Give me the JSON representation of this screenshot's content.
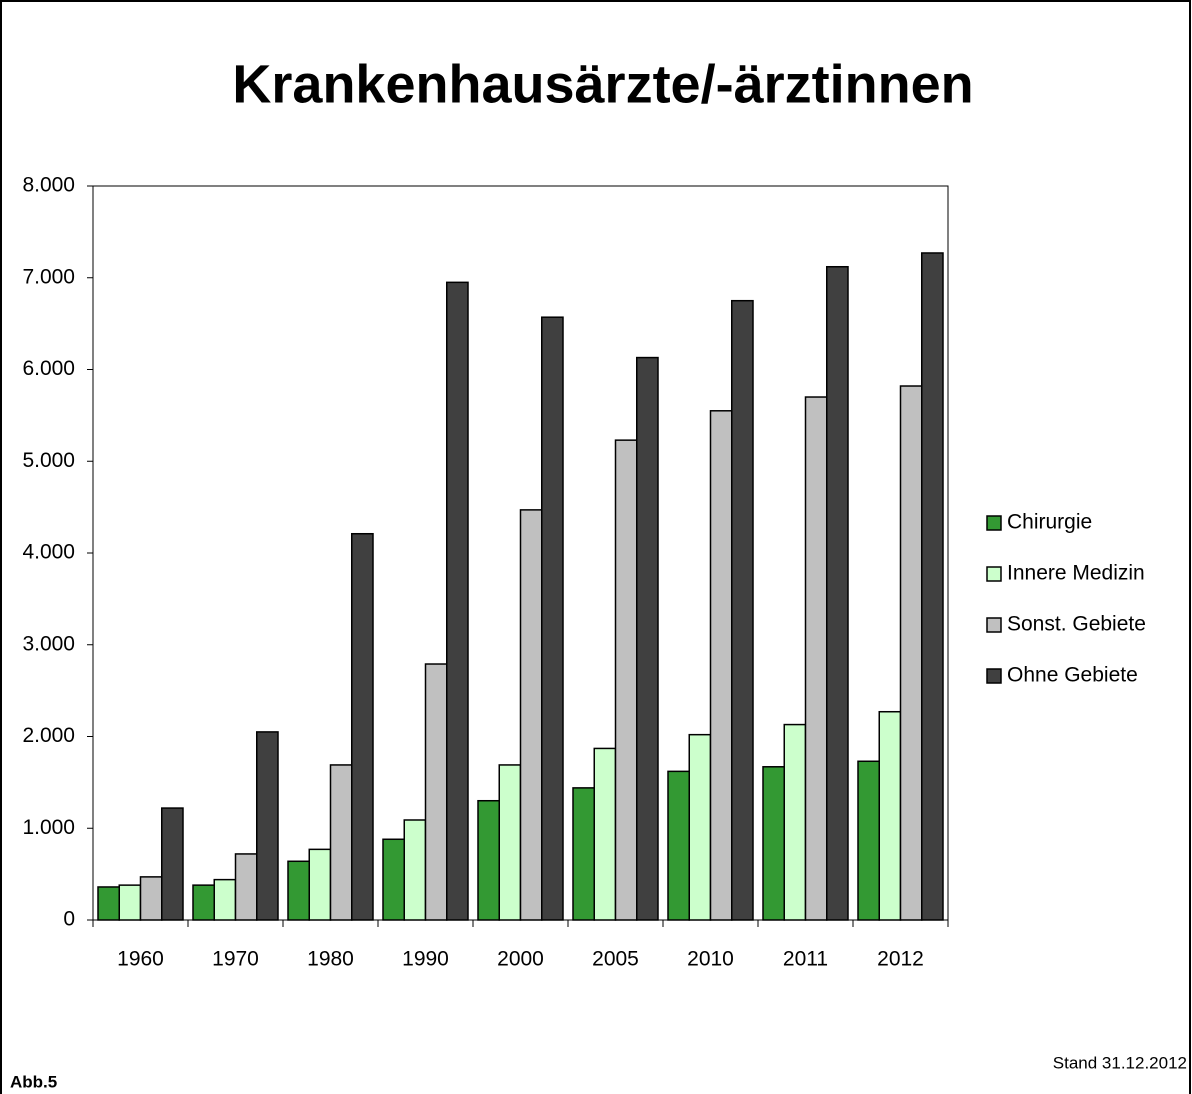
{
  "chart_data": {
    "type": "bar",
    "title": "Krankenhausärzte/-ärztinnen",
    "categories": [
      "1960",
      "1970",
      "1980",
      "1990",
      "2000",
      "2005",
      "2010",
      "2011",
      "2012"
    ],
    "series": [
      {
        "name": "Chirurgie",
        "color": "#339933",
        "values": [
          360,
          380,
          640,
          880,
          1300,
          1440,
          1620,
          1670,
          1730
        ]
      },
      {
        "name": "Innere Medizin",
        "color": "#ccffcc",
        "values": [
          380,
          440,
          770,
          1090,
          1690,
          1870,
          2020,
          2130,
          2270
        ]
      },
      {
        "name": "Sonst. Gebiete",
        "color": "#c0c0c0",
        "values": [
          470,
          720,
          1690,
          2790,
          4470,
          5230,
          5550,
          5700,
          5820
        ]
      },
      {
        "name": "Ohne Gebiete",
        "color": "#404040",
        "values": [
          1220,
          2050,
          4210,
          6950,
          6570,
          6130,
          6750,
          7120,
          7270
        ]
      }
    ],
    "ylim": [
      0,
      8000
    ],
    "yticks": [
      0,
      {
        "value": 1000,
        "label": "1.000"
      },
      {
        "value": 2000,
        "label": "2.000"
      },
      {
        "value": 3000,
        "label": "3.000"
      },
      {
        "value": 4000,
        "label": "4.000"
      },
      {
        "value": 5000,
        "label": "5.000"
      },
      {
        "value": 6000,
        "label": "6.000"
      },
      {
        "value": 7000,
        "label": "7.000"
      },
      {
        "value": 8000,
        "label": "8.000"
      }
    ],
    "note": "Stand 31.12.2012",
    "figure_label": "Abb.5"
  }
}
